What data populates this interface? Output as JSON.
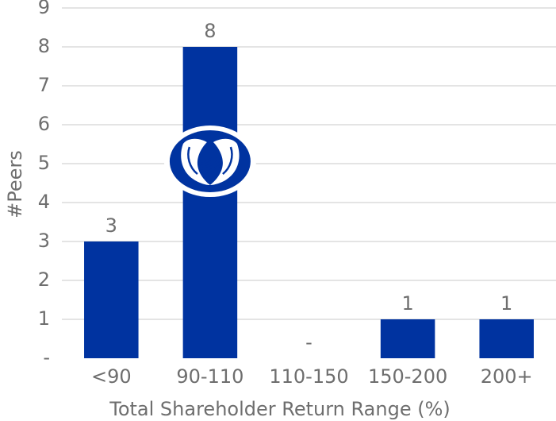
{
  "chart_data": {
    "type": "bar",
    "categories": [
      "<90",
      "90-110",
      "110-150",
      "150-200",
      "200+"
    ],
    "values": [
      3,
      8,
      0,
      1,
      1
    ],
    "data_labels": [
      "3",
      "8",
      "-",
      "1",
      "1"
    ],
    "y_tick_labels": [
      "-",
      "1",
      "2",
      "3",
      "4",
      "5",
      "6",
      "7",
      "8",
      "9"
    ],
    "xlabel": "Total Shareholder Return Range (%)",
    "ylabel": "#Peers",
    "ylim": [
      0,
      9
    ],
    "grid": true,
    "bar_color": "#0033a0",
    "logo": "allstate-hands-logo",
    "logo_category": "90-110"
  }
}
